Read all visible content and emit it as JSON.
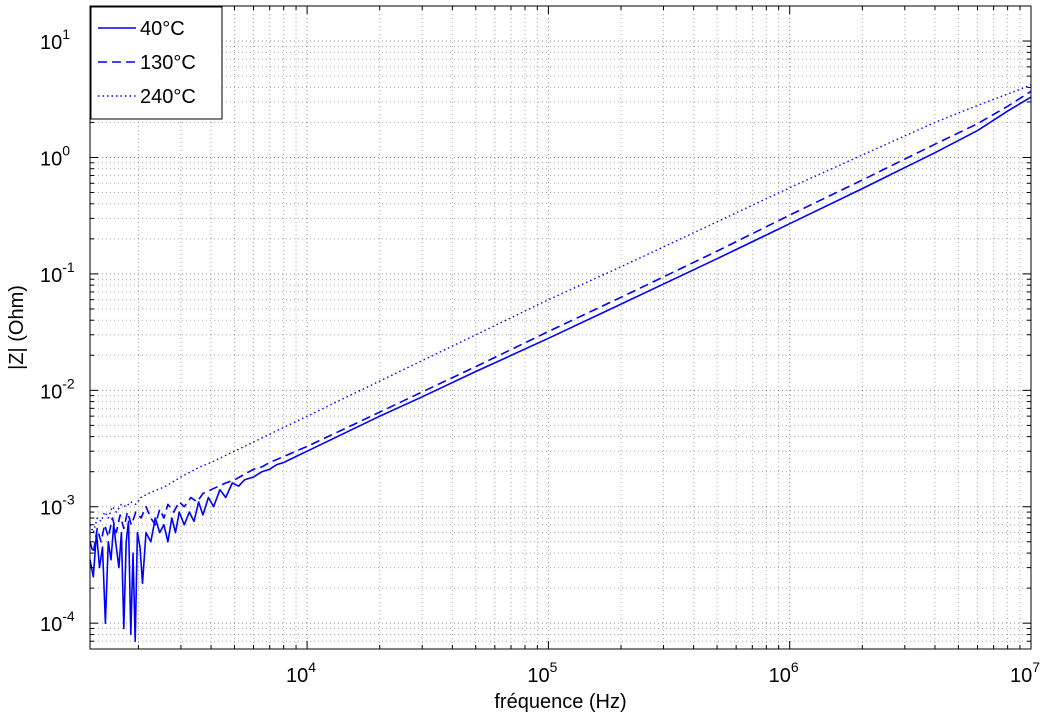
{
  "chart_data": {
    "type": "line",
    "title": "",
    "xlabel": "fréquence (Hz)",
    "ylabel": "|Z| (Ohm)",
    "xscale": "log",
    "yscale": "log",
    "xlim": [
      1260,
      10000000
    ],
    "ylim": [
      6e-05,
      20
    ],
    "grid": true,
    "minor_grid": true,
    "legend_position": "top-left",
    "x_ticks": [
      {
        "value": 10000,
        "base": "10",
        "exp": "4"
      },
      {
        "value": 100000,
        "base": "10",
        "exp": "5"
      },
      {
        "value": 1000000,
        "base": "10",
        "exp": "6"
      },
      {
        "value": 10000000,
        "base": "10",
        "exp": "7"
      }
    ],
    "y_ticks": [
      {
        "value": 0.0001,
        "base": "10",
        "exp": "-4"
      },
      {
        "value": 0.001,
        "base": "10",
        "exp": "-3"
      },
      {
        "value": 0.01,
        "base": "10",
        "exp": "-2"
      },
      {
        "value": 0.1,
        "base": "10",
        "exp": "-1"
      },
      {
        "value": 1,
        "base": "10",
        "exp": "0"
      },
      {
        "value": 10,
        "base": "10",
        "exp": "1"
      }
    ],
    "series": [
      {
        "name": "40°C",
        "color": "#0000ff",
        "style": "solid",
        "points": [
          [
            1260,
            0.00035
          ],
          [
            1300,
            0.00025
          ],
          [
            1340,
            0.0006
          ],
          [
            1380,
            0.0003
          ],
          [
            1420,
            0.00045
          ],
          [
            1460,
            0.0001
          ],
          [
            1500,
            0.0005
          ],
          [
            1540,
            0.00035
          ],
          [
            1580,
            0.0007
          ],
          [
            1620,
            0.00045
          ],
          [
            1660,
            0.0003
          ],
          [
            1700,
            0.0006
          ],
          [
            1740,
            9e-05
          ],
          [
            1780,
            0.0005
          ],
          [
            1820,
            0.00075
          ],
          [
            1860,
            8e-05
          ],
          [
            1900,
            0.0004
          ],
          [
            1940,
            7e-05
          ],
          [
            1980,
            0.0006
          ],
          [
            2030,
            0.00045
          ],
          [
            2080,
            0.00022
          ],
          [
            2150,
            0.0006
          ],
          [
            2250,
            0.0005
          ],
          [
            2350,
            0.0008
          ],
          [
            2450,
            0.0006
          ],
          [
            2550,
            0.0007
          ],
          [
            2650,
            0.0005
          ],
          [
            2750,
            0.0008
          ],
          [
            2850,
            0.0006
          ],
          [
            2950,
            0.0009
          ],
          [
            3100,
            0.0007
          ],
          [
            3250,
            0.0009
          ],
          [
            3400,
            0.00075
          ],
          [
            3550,
            0.0011
          ],
          [
            3700,
            0.00085
          ],
          [
            3900,
            0.0012
          ],
          [
            4100,
            0.001
          ],
          [
            4350,
            0.0014
          ],
          [
            4600,
            0.0012
          ],
          [
            4900,
            0.0016
          ],
          [
            5200,
            0.0015
          ],
          [
            5500,
            0.0017
          ],
          [
            6000,
            0.0018
          ],
          [
            6500,
            0.002
          ],
          [
            7000,
            0.0021
          ],
          [
            7500,
            0.0023
          ],
          [
            8000,
            0.0024
          ],
          [
            9000,
            0.0027
          ],
          [
            10000,
            0.003
          ],
          [
            15000,
            0.0045
          ],
          [
            20000,
            0.006
          ],
          [
            30000,
            0.0088
          ],
          [
            50000,
            0.0145
          ],
          [
            100000,
            0.028
          ],
          [
            200000,
            0.055
          ],
          [
            500000,
            0.135
          ],
          [
            1000000,
            0.27
          ],
          [
            2000000,
            0.54
          ],
          [
            4000000,
            1.1
          ],
          [
            6000000,
            1.7
          ],
          [
            8000000,
            2.5
          ],
          [
            10000000,
            3.3
          ]
        ]
      },
      {
        "name": "130°C",
        "color": "#0000ff",
        "style": "dashed",
        "points": [
          [
            1260,
            0.0005
          ],
          [
            1300,
            0.0004
          ],
          [
            1350,
            0.00065
          ],
          [
            1400,
            0.0005
          ],
          [
            1450,
            0.0007
          ],
          [
            1500,
            0.00055
          ],
          [
            1560,
            0.0008
          ],
          [
            1620,
            0.0006
          ],
          [
            1680,
            0.00085
          ],
          [
            1740,
            0.00065
          ],
          [
            1800,
            0.0009
          ],
          [
            1870,
            0.0007
          ],
          [
            1950,
            0.0009
          ],
          [
            2050,
            0.0008
          ],
          [
            2150,
            0.001
          ],
          [
            2250,
            0.0008
          ],
          [
            2350,
            0.0007
          ],
          [
            2450,
            0.00095
          ],
          [
            2550,
            0.0008
          ],
          [
            2650,
            0.00105
          ],
          [
            2800,
            0.0009
          ],
          [
            2950,
            0.0011
          ],
          [
            3100,
            0.001
          ],
          [
            3300,
            0.0012
          ],
          [
            3500,
            0.0011
          ],
          [
            3700,
            0.0013
          ],
          [
            4000,
            0.0014
          ],
          [
            4300,
            0.0015
          ],
          [
            4600,
            0.0016
          ],
          [
            5000,
            0.0017
          ],
          [
            5500,
            0.0019
          ],
          [
            6000,
            0.0021
          ],
          [
            6500,
            0.0022
          ],
          [
            7000,
            0.0024
          ],
          [
            8000,
            0.0027
          ],
          [
            9000,
            0.003
          ],
          [
            10000,
            0.0033
          ],
          [
            15000,
            0.0049
          ],
          [
            20000,
            0.0065
          ],
          [
            30000,
            0.0097
          ],
          [
            50000,
            0.016
          ],
          [
            100000,
            0.032
          ],
          [
            200000,
            0.063
          ],
          [
            500000,
            0.157
          ],
          [
            1000000,
            0.32
          ],
          [
            2000000,
            0.64
          ],
          [
            4000000,
            1.3
          ],
          [
            6000000,
            1.95
          ],
          [
            8000000,
            2.75
          ],
          [
            10000000,
            3.7
          ]
        ]
      },
      {
        "name": "240°C",
        "color": "#0000ff",
        "style": "dotted",
        "points": [
          [
            1260,
            0.0007
          ],
          [
            1300,
            0.0006
          ],
          [
            1350,
            0.0008
          ],
          [
            1400,
            0.00075
          ],
          [
            1450,
            0.0009
          ],
          [
            1500,
            0.0008
          ],
          [
            1560,
            0.001
          ],
          [
            1620,
            0.0009
          ],
          [
            1700,
            0.00105
          ],
          [
            1780,
            0.001
          ],
          [
            1860,
            0.0011
          ],
          [
            1950,
            0.00105
          ],
          [
            2050,
            0.0012
          ],
          [
            2200,
            0.0013
          ],
          [
            2400,
            0.0014
          ],
          [
            2600,
            0.0015
          ],
          [
            2800,
            0.00165
          ],
          [
            3000,
            0.0018
          ],
          [
            3300,
            0.002
          ],
          [
            3600,
            0.0022
          ],
          [
            4000,
            0.0024
          ],
          [
            4500,
            0.0027
          ],
          [
            5000,
            0.003
          ],
          [
            6000,
            0.0036
          ],
          [
            7000,
            0.0042
          ],
          [
            8000,
            0.0048
          ],
          [
            10000,
            0.006
          ],
          [
            15000,
            0.009
          ],
          [
            20000,
            0.012
          ],
          [
            30000,
            0.018
          ],
          [
            50000,
            0.03
          ],
          [
            100000,
            0.06
          ],
          [
            200000,
            0.115
          ],
          [
            500000,
            0.28
          ],
          [
            1000000,
            0.55
          ],
          [
            2000000,
            1.05
          ],
          [
            4000000,
            2.0
          ],
          [
            6000000,
            2.8
          ],
          [
            8000000,
            3.5
          ],
          [
            10000000,
            4.2
          ]
        ]
      }
    ]
  }
}
